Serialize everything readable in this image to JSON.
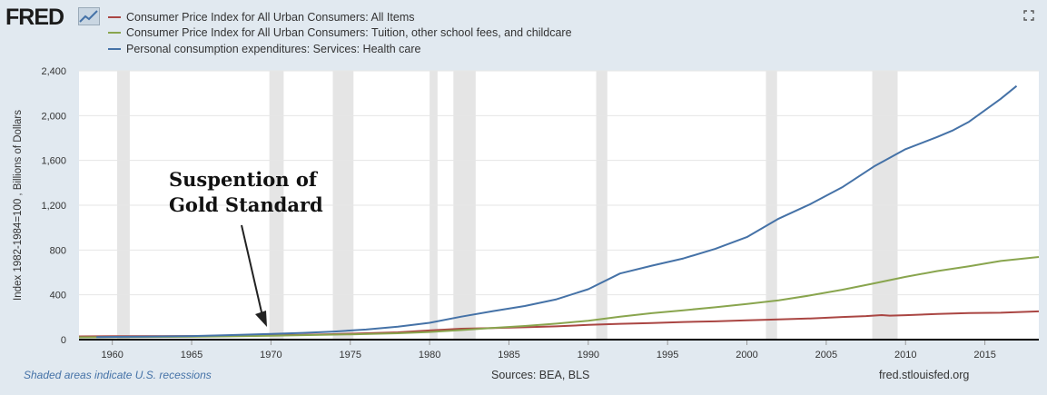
{
  "header": {
    "logo_text": "FRED",
    "logo_icon": "chart-trend-icon",
    "fullscreen_icon": "expand-icon"
  },
  "legend": [
    {
      "label": "Consumer Price Index for All Urban Consumers: All Items",
      "color": "#aa4643"
    },
    {
      "label": "Consumer Price Index for All Urban Consumers: Tuition, other school fees, and childcare",
      "color": "#89a54e"
    },
    {
      "label": "Personal consumption expenditures: Services: Health care",
      "color": "#4572a7"
    }
  ],
  "annotation": {
    "line1": "Suspention of",
    "line2": "Gold Standard"
  },
  "footer": {
    "recession_note": "Shaded areas indicate U.S. recessions",
    "sources": "Sources: BEA, BLS",
    "site": "fred.stlouisfed.org"
  },
  "chart_data": {
    "type": "line",
    "ylabel": "Index 1982-1984=100 , Billions of Dollars",
    "xlim": [
      1957.9,
      2018.4
    ],
    "ylim": [
      0,
      2400
    ],
    "x_ticks": [
      1960,
      1965,
      1970,
      1975,
      1980,
      1985,
      1990,
      1995,
      2000,
      2005,
      2010,
      2015
    ],
    "y_ticks": [
      {
        "value": 0,
        "label": "0"
      },
      {
        "value": 400,
        "label": "400"
      },
      {
        "value": 800,
        "label": "800"
      },
      {
        "value": 1200,
        "label": "1,200"
      },
      {
        "value": 1600,
        "label": "1,600"
      },
      {
        "value": 2000,
        "label": "2,000"
      },
      {
        "value": 2400,
        "label": "2,400"
      }
    ],
    "grid": true,
    "legend_position": "top-left",
    "recessions": [
      [
        1960.3,
        1961.1
      ],
      [
        1969.9,
        1970.8
      ],
      [
        1973.9,
        1975.2
      ],
      [
        1980.0,
        1980.5
      ],
      [
        1981.5,
        1982.9
      ],
      [
        1990.5,
        1991.2
      ],
      [
        2001.2,
        2001.9
      ],
      [
        2007.9,
        2009.5
      ]
    ],
    "series": [
      {
        "name": "Consumer Price Index for All Urban Consumers: All Items",
        "color": "#aa4643",
        "points": [
          [
            1957.9,
            28
          ],
          [
            1960,
            30
          ],
          [
            1965,
            32
          ],
          [
            1968,
            35
          ],
          [
            1970,
            39
          ],
          [
            1972,
            42
          ],
          [
            1974,
            49
          ],
          [
            1976,
            57
          ],
          [
            1978,
            65
          ],
          [
            1980,
            82
          ],
          [
            1982,
            97
          ],
          [
            1984,
            104
          ],
          [
            1986,
            110
          ],
          [
            1988,
            118
          ],
          [
            1990,
            131
          ],
          [
            1992,
            141
          ],
          [
            1994,
            148
          ],
          [
            1996,
            157
          ],
          [
            1998,
            163
          ],
          [
            2000,
            172
          ],
          [
            2002,
            180
          ],
          [
            2004,
            189
          ],
          [
            2006,
            202
          ],
          [
            2007.5,
            210
          ],
          [
            2008.5,
            219
          ],
          [
            2009,
            214
          ],
          [
            2010,
            218
          ],
          [
            2012,
            229
          ],
          [
            2014,
            237
          ],
          [
            2016,
            240
          ],
          [
            2018.4,
            252
          ]
        ]
      },
      {
        "name": "Consumer Price Index for All Urban Consumers: Tuition, other school fees, and childcare",
        "color": "#89a54e",
        "points": [
          [
            1957.9,
            20
          ],
          [
            1965,
            25
          ],
          [
            1970,
            34
          ],
          [
            1975,
            47
          ],
          [
            1978,
            57
          ],
          [
            1980,
            68
          ],
          [
            1982,
            85
          ],
          [
            1984,
            105
          ],
          [
            1986,
            122
          ],
          [
            1988,
            143
          ],
          [
            1990,
            169
          ],
          [
            1992,
            205
          ],
          [
            1994,
            236
          ],
          [
            1996,
            262
          ],
          [
            1998,
            289
          ],
          [
            2000,
            318
          ],
          [
            2002,
            350
          ],
          [
            2004,
            395
          ],
          [
            2006,
            445
          ],
          [
            2008,
            502
          ],
          [
            2010,
            560
          ],
          [
            2012,
            612
          ],
          [
            2014,
            655
          ],
          [
            2016,
            702
          ],
          [
            2018.4,
            738
          ]
        ]
      },
      {
        "name": "Personal consumption expenditures: Services: Health care",
        "color": "#4572a7",
        "points": [
          [
            1959,
            22
          ],
          [
            1962,
            27
          ],
          [
            1965,
            32
          ],
          [
            1968,
            42
          ],
          [
            1970,
            50
          ],
          [
            1972,
            60
          ],
          [
            1974,
            72
          ],
          [
            1976,
            90
          ],
          [
            1978,
            115
          ],
          [
            1980,
            150
          ],
          [
            1982,
            205
          ],
          [
            1984,
            255
          ],
          [
            1986,
            300
          ],
          [
            1988,
            360
          ],
          [
            1990,
            450
          ],
          [
            1992,
            590
          ],
          [
            1994,
            660
          ],
          [
            1996,
            725
          ],
          [
            1998,
            810
          ],
          [
            2000,
            915
          ],
          [
            2002,
            1080
          ],
          [
            2004,
            1210
          ],
          [
            2006,
            1360
          ],
          [
            2008,
            1545
          ],
          [
            2010,
            1700
          ],
          [
            2012,
            1810
          ],
          [
            2013,
            1870
          ],
          [
            2014,
            1945
          ],
          [
            2016,
            2150
          ],
          [
            2017,
            2265
          ]
        ]
      }
    ]
  }
}
